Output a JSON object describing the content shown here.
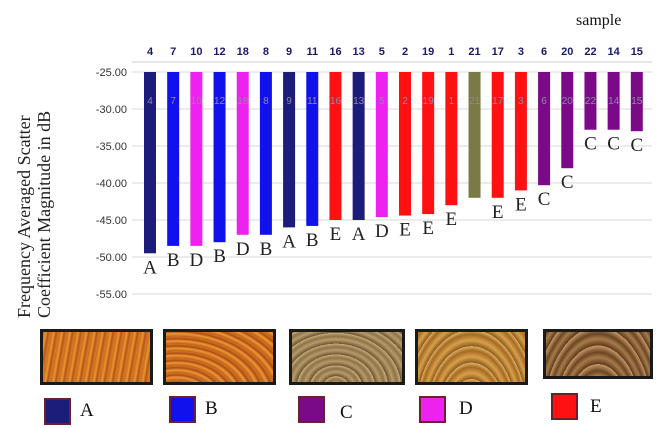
{
  "chart_data": {
    "type": "bar",
    "title": "",
    "top_right_label": "sample",
    "ylabel_lines": [
      "Frequency Averaged Scatter",
      "Coefficient Magnitude in dB"
    ],
    "xlabel": "",
    "ylim": [
      -55,
      -25
    ],
    "yticks": [
      "-25.00",
      "-30.00",
      "-35.00",
      "-40.00",
      "-45.00",
      "-50.00",
      "-55.00"
    ],
    "grid": true,
    "categories": [
      "4",
      "7",
      "10",
      "12",
      "18",
      "8",
      "9",
      "11",
      "16",
      "13",
      "5",
      "2",
      "19",
      "1",
      "21",
      "17",
      "3",
      "6",
      "20",
      "22",
      "14",
      "15"
    ],
    "values": [
      -49.5,
      -48.5,
      -48.5,
      -48.0,
      -47.0,
      -47.0,
      -46.0,
      -45.8,
      -45.0,
      -45.0,
      -44.6,
      -44.4,
      -44.2,
      -43.0,
      -42.0,
      -42.0,
      -41.0,
      -40.3,
      -38.0,
      -32.8,
      -32.8,
      -33.0
    ],
    "classes": [
      "A",
      "B",
      "D",
      "B",
      "D",
      "B",
      "A",
      "B",
      "E",
      "A",
      "D",
      "E",
      "E",
      "E",
      "",
      "E",
      "E",
      "C",
      "C",
      "C",
      "C",
      "C"
    ],
    "bar_colors": [
      "#1c1c7a",
      "#1111ee",
      "#ee22ee",
      "#1111ee",
      "#ee22ee",
      "#1111ee",
      "#1c1c7a",
      "#1111ee",
      "#ff1111",
      "#1c1c7a",
      "#ee22ee",
      "#ff1111",
      "#ff1111",
      "#ff1111",
      "#7a7a44",
      "#ff1111",
      "#ff1111",
      "#7a0a88",
      "#7a0a88",
      "#7a0a88",
      "#7a0a88",
      "#7a0a88"
    ]
  },
  "legend": [
    {
      "label": "A",
      "color": "#1c1c7a"
    },
    {
      "label": "B",
      "color": "#1111ee"
    },
    {
      "label": "C",
      "color": "#7a0a88"
    },
    {
      "label": "D",
      "color": "#ee22ee"
    },
    {
      "label": "E",
      "color": "#ff1111"
    }
  ]
}
